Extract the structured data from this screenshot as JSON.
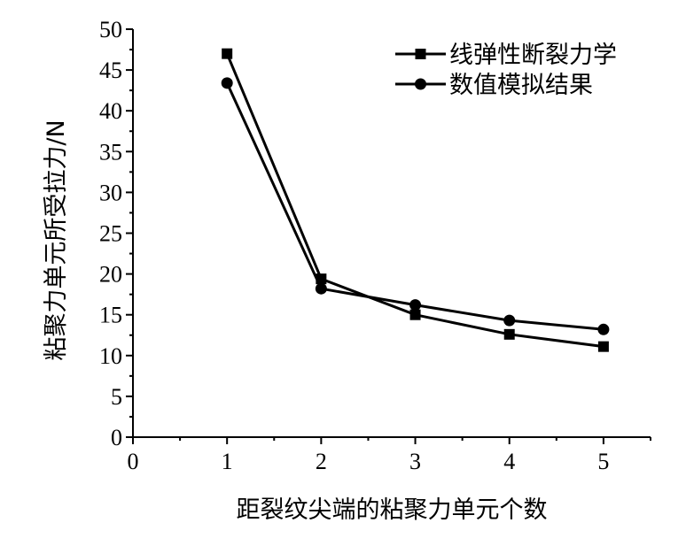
{
  "chart_data": {
    "type": "line",
    "title": "",
    "xlabel": "距裂纹尖端的粘聚力单元个数",
    "ylabel": "粘聚力单元所受拉力/N",
    "xlim": [
      0,
      5.5
    ],
    "ylim": [
      0,
      50
    ],
    "x_ticks": [
      "0",
      "1",
      "2",
      "3",
      "4",
      "5"
    ],
    "y_ticks": [
      "0",
      "5",
      "10",
      "15",
      "20",
      "25",
      "30",
      "35",
      "40",
      "45",
      "50"
    ],
    "grid": false,
    "legend_position": "top-right",
    "series": [
      {
        "name": "线弹性断裂力学",
        "marker": "square",
        "color": "#000000",
        "x": [
          1,
          2,
          3,
          4,
          5
        ],
        "y": [
          47.0,
          19.4,
          15.0,
          12.6,
          11.1
        ]
      },
      {
        "name": "数值模拟结果",
        "marker": "circle",
        "color": "#000000",
        "x": [
          1,
          2,
          3,
          4,
          5
        ],
        "y": [
          43.4,
          18.2,
          16.2,
          14.3,
          13.2
        ]
      }
    ]
  }
}
